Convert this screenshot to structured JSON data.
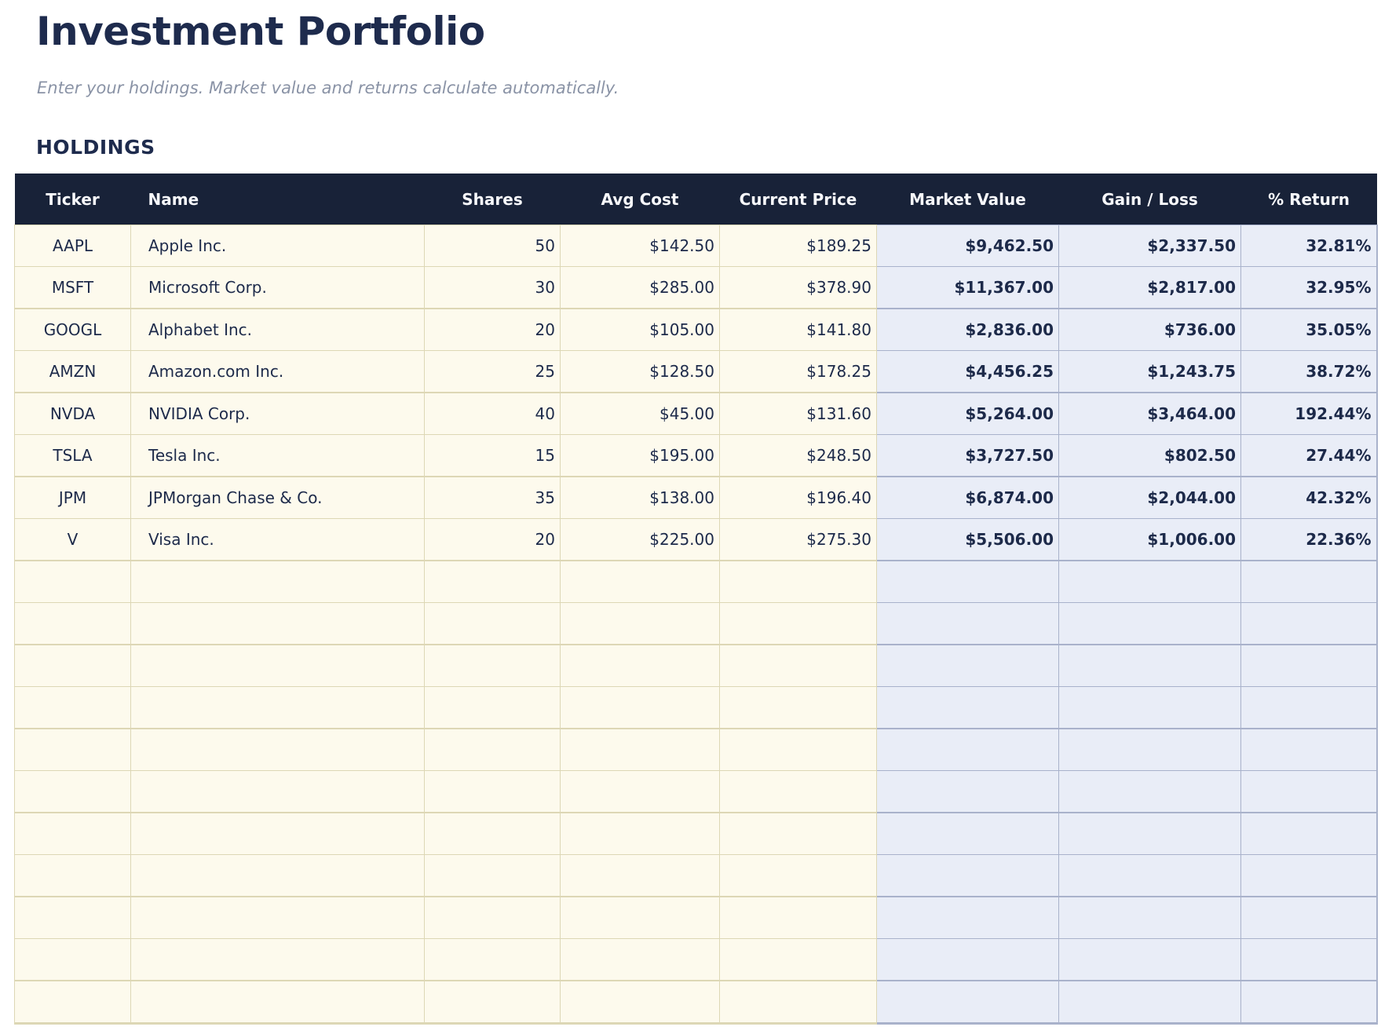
{
  "page": {
    "title": "Investment Portfolio",
    "subtitle": "Enter your holdings. Market value and returns calculate automatically.",
    "section_label": "HOLDINGS"
  },
  "table": {
    "columns": [
      {
        "key": "ticker",
        "label": "Ticker",
        "align": "center",
        "type": "input"
      },
      {
        "key": "name",
        "label": "Name",
        "align": "left",
        "type": "input"
      },
      {
        "key": "shares",
        "label": "Shares",
        "align": "right",
        "type": "input"
      },
      {
        "key": "avg-cost",
        "label": "Avg Cost",
        "align": "right",
        "type": "input"
      },
      {
        "key": "current-price",
        "label": "Current Price",
        "align": "right",
        "type": "input"
      },
      {
        "key": "market-value",
        "label": "Market Value",
        "align": "right",
        "type": "calculated"
      },
      {
        "key": "gain-loss",
        "label": "Gain / Loss",
        "align": "right",
        "type": "calculated"
      },
      {
        "key": "percent-return",
        "label": "% Return",
        "align": "right",
        "type": "calculated"
      }
    ],
    "rows": [
      [
        "AAPL",
        "Apple Inc.",
        "50",
        "$142.50",
        "$189.25",
        "$9,462.50",
        "$2,337.50",
        "32.81%"
      ],
      [
        "MSFT",
        "Microsoft Corp.",
        "30",
        "$285.00",
        "$378.90",
        "$11,367.00",
        "$2,817.00",
        "32.95%"
      ],
      [
        "GOOGL",
        "Alphabet Inc.",
        "20",
        "$105.00",
        "$141.80",
        "$2,836.00",
        "$736.00",
        "35.05%"
      ],
      [
        "AMZN",
        "Amazon.com Inc.",
        "25",
        "$128.50",
        "$178.25",
        "$4,456.25",
        "$1,243.75",
        "38.72%"
      ],
      [
        "NVDA",
        "NVIDIA Corp.",
        "40",
        "$45.00",
        "$131.60",
        "$5,264.00",
        "$3,464.00",
        "192.44%"
      ],
      [
        "TSLA",
        "Tesla Inc.",
        "15",
        "$195.00",
        "$248.50",
        "$3,727.50",
        "$802.50",
        "27.44%"
      ],
      [
        "JPM",
        "JPMorgan Chase & Co.",
        "35",
        "$138.00",
        "$196.40",
        "$6,874.00",
        "$2,044.00",
        "42.32%"
      ],
      [
        "V",
        "Visa Inc.",
        "20",
        "$225.00",
        "$275.30",
        "$5,506.00",
        "$1,006.00",
        "22.36%"
      ]
    ],
    "empty_row_count": 11
  },
  "colors": {
    "header_bg": "#182238",
    "header_text": "#f7f8fb",
    "title_text": "#1e2b4d",
    "subtitle_text": "#8a93a6",
    "body_text": "#1d2a4a",
    "input_cell_bg": "#fdfaed",
    "input_cell_border": "#ddd7b5",
    "calc_cell_bg": "#e9edf7",
    "calc_cell_border": "#a9b2cb"
  }
}
